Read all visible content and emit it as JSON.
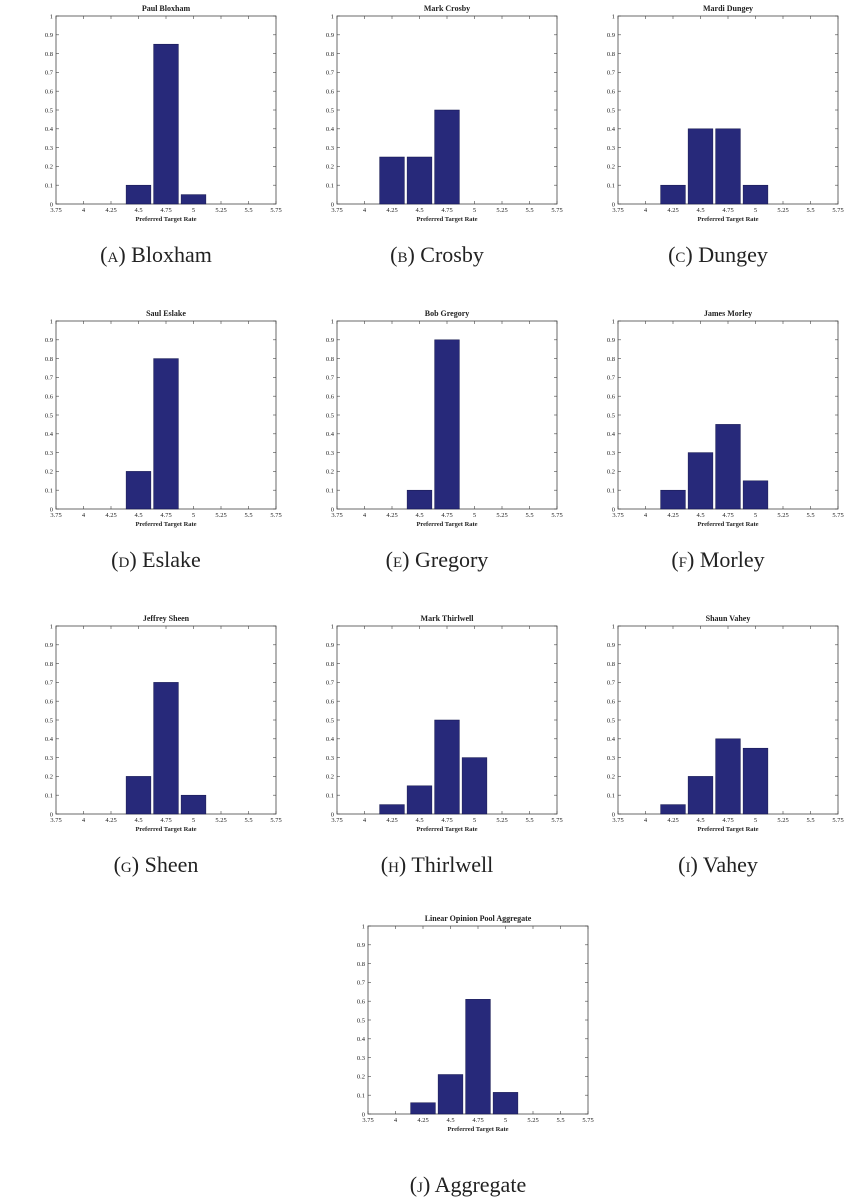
{
  "chart_data": [
    {
      "type": "bar",
      "title": "Paul Bloxham",
      "caption_tag": "(a)",
      "caption_name": "Bloxham",
      "xlabel": "Preferred Target Rate",
      "x_ticks": [
        "3.75",
        "4",
        "4.25",
        "4.5",
        "4.75",
        "5",
        "5.25",
        "5.5",
        "5.75"
      ],
      "y_ticks": [
        "0",
        "0.1",
        "0.2",
        "0.3",
        "0.4",
        "0.5",
        "0.6",
        "0.7",
        "0.8",
        "0.9",
        "1"
      ],
      "xlim": [
        3.75,
        5.75
      ],
      "ylim": [
        0,
        1
      ],
      "x": [
        4.5,
        4.75,
        5.0
      ],
      "values": [
        0.1,
        0.85,
        0.05
      ],
      "color": "#27297a"
    },
    {
      "type": "bar",
      "title": "Mark Crosby",
      "caption_tag": "(b)",
      "caption_name": "Crosby",
      "xlabel": "Preferred Target Rate",
      "x_ticks": [
        "3.75",
        "4",
        "4.25",
        "4.5",
        "4.75",
        "5",
        "5.25",
        "5.5",
        "5.75"
      ],
      "y_ticks": [
        "0",
        "0.1",
        "0.2",
        "0.3",
        "0.4",
        "0.5",
        "0.6",
        "0.7",
        "0.8",
        "0.9",
        "1"
      ],
      "xlim": [
        3.75,
        5.75
      ],
      "ylim": [
        0,
        1
      ],
      "x": [
        4.25,
        4.5,
        4.75
      ],
      "values": [
        0.25,
        0.25,
        0.5
      ],
      "color": "#27297a"
    },
    {
      "type": "bar",
      "title": "Mardi Dungey",
      "caption_tag": "(c)",
      "caption_name": "Dungey",
      "xlabel": "Preferred Target Rate",
      "x_ticks": [
        "3.75",
        "4",
        "4.25",
        "4.5",
        "4.75",
        "5",
        "5.25",
        "5.5",
        "5.75"
      ],
      "y_ticks": [
        "0",
        "0.1",
        "0.2",
        "0.3",
        "0.4",
        "0.5",
        "0.6",
        "0.7",
        "0.8",
        "0.9",
        "1"
      ],
      "xlim": [
        3.75,
        5.75
      ],
      "ylim": [
        0,
        1
      ],
      "x": [
        4.25,
        4.5,
        4.75,
        5.0
      ],
      "values": [
        0.1,
        0.4,
        0.4,
        0.1
      ],
      "color": "#27297a"
    },
    {
      "type": "bar",
      "title": "Saul Eslake",
      "caption_tag": "(d)",
      "caption_name": "Eslake",
      "xlabel": "Preferred Target Rate",
      "x_ticks": [
        "3.75",
        "4",
        "4.25",
        "4.5",
        "4.75",
        "5",
        "5.25",
        "5.5",
        "5.75"
      ],
      "y_ticks": [
        "0",
        "0.1",
        "0.2",
        "0.3",
        "0.4",
        "0.5",
        "0.6",
        "0.7",
        "0.8",
        "0.9",
        "1"
      ],
      "xlim": [
        3.75,
        5.75
      ],
      "ylim": [
        0,
        1
      ],
      "x": [
        4.5,
        4.75
      ],
      "values": [
        0.2,
        0.8
      ],
      "color": "#27297a"
    },
    {
      "type": "bar",
      "title": "Bob Gregory",
      "caption_tag": "(e)",
      "caption_name": "Gregory",
      "xlabel": "Preferred Target Rate",
      "x_ticks": [
        "3.75",
        "4",
        "4.25",
        "4.5",
        "4.75",
        "5",
        "5.25",
        "5.5",
        "5.75"
      ],
      "y_ticks": [
        "0",
        "0.1",
        "0.2",
        "0.3",
        "0.4",
        "0.5",
        "0.6",
        "0.7",
        "0.8",
        "0.9",
        "1"
      ],
      "xlim": [
        3.75,
        5.75
      ],
      "ylim": [
        0,
        1
      ],
      "x": [
        4.5,
        4.75
      ],
      "values": [
        0.1,
        0.9
      ],
      "color": "#27297a"
    },
    {
      "type": "bar",
      "title": "James Morley",
      "caption_tag": "(f)",
      "caption_name": "Morley",
      "xlabel": "Preferred Target Rate",
      "x_ticks": [
        "3.75",
        "4",
        "4.25",
        "4.5",
        "4.75",
        "5",
        "5.25",
        "5.5",
        "5.75"
      ],
      "y_ticks": [
        "0",
        "0.1",
        "0.2",
        "0.3",
        "0.4",
        "0.5",
        "0.6",
        "0.7",
        "0.8",
        "0.9",
        "1"
      ],
      "xlim": [
        3.75,
        5.75
      ],
      "ylim": [
        0,
        1
      ],
      "x": [
        4.25,
        4.5,
        4.75,
        5.0
      ],
      "values": [
        0.1,
        0.3,
        0.45,
        0.15
      ],
      "color": "#27297a"
    },
    {
      "type": "bar",
      "title": "Jeffrey Sheen",
      "caption_tag": "(g)",
      "caption_name": "Sheen",
      "xlabel": "Preferred Target Rate",
      "x_ticks": [
        "3.75",
        "4",
        "4.25",
        "4.5",
        "4.75",
        "5",
        "5.25",
        "5.5",
        "5.75"
      ],
      "y_ticks": [
        "0",
        "0.1",
        "0.2",
        "0.3",
        "0.4",
        "0.5",
        "0.6",
        "0.7",
        "0.8",
        "0.9",
        "1"
      ],
      "xlim": [
        3.75,
        5.75
      ],
      "ylim": [
        0,
        1
      ],
      "x": [
        4.5,
        4.75,
        5.0
      ],
      "values": [
        0.2,
        0.7,
        0.1
      ],
      "color": "#27297a"
    },
    {
      "type": "bar",
      "title": "Mark Thirlwell",
      "caption_tag": "(h)",
      "caption_name": "Thirlwell",
      "xlabel": "Preferred Target Rate",
      "x_ticks": [
        "3.75",
        "4",
        "4.25",
        "4.5",
        "4.75",
        "5",
        "5.25",
        "5.5",
        "5.75"
      ],
      "y_ticks": [
        "0",
        "0.1",
        "0.2",
        "0.3",
        "0.4",
        "0.5",
        "0.6",
        "0.7",
        "0.8",
        "0.9",
        "1"
      ],
      "xlim": [
        3.75,
        5.75
      ],
      "ylim": [
        0,
        1
      ],
      "x": [
        4.25,
        4.5,
        4.75,
        5.0
      ],
      "values": [
        0.05,
        0.15,
        0.5,
        0.3
      ],
      "color": "#27297a"
    },
    {
      "type": "bar",
      "title": "Shaun Vahey",
      "caption_tag": "(i)",
      "caption_name": "Vahey",
      "xlabel": "Preferred Target Rate",
      "x_ticks": [
        "3.75",
        "4",
        "4.25",
        "4.5",
        "4.75",
        "5",
        "5.25",
        "5.5",
        "5.75"
      ],
      "y_ticks": [
        "0",
        "0.1",
        "0.2",
        "0.3",
        "0.4",
        "0.5",
        "0.6",
        "0.7",
        "0.8",
        "0.9",
        "1"
      ],
      "xlim": [
        3.75,
        5.75
      ],
      "ylim": [
        0,
        1
      ],
      "x": [
        4.25,
        4.5,
        4.75,
        5.0
      ],
      "values": [
        0.05,
        0.2,
        0.4,
        0.35
      ],
      "color": "#27297a"
    },
    {
      "type": "bar",
      "title": "Linear Opinion Pool Aggregate",
      "caption_tag": "(j)",
      "caption_name": "Aggregate",
      "xlabel": "Preferred Target Rate",
      "x_ticks": [
        "3.75",
        "4",
        "4.25",
        "4.5",
        "4.75",
        "5",
        "5.25",
        "5.5",
        "5.75"
      ],
      "y_ticks": [
        "0",
        "0.1",
        "0.2",
        "0.3",
        "0.4",
        "0.5",
        "0.6",
        "0.7",
        "0.8",
        "0.9",
        "1"
      ],
      "xlim": [
        3.75,
        5.75
      ],
      "ylim": [
        0,
        1
      ],
      "x": [
        4.25,
        4.5,
        4.75,
        5.0
      ],
      "values": [
        0.06,
        0.21,
        0.61,
        0.115
      ],
      "color": "#27297a"
    }
  ]
}
